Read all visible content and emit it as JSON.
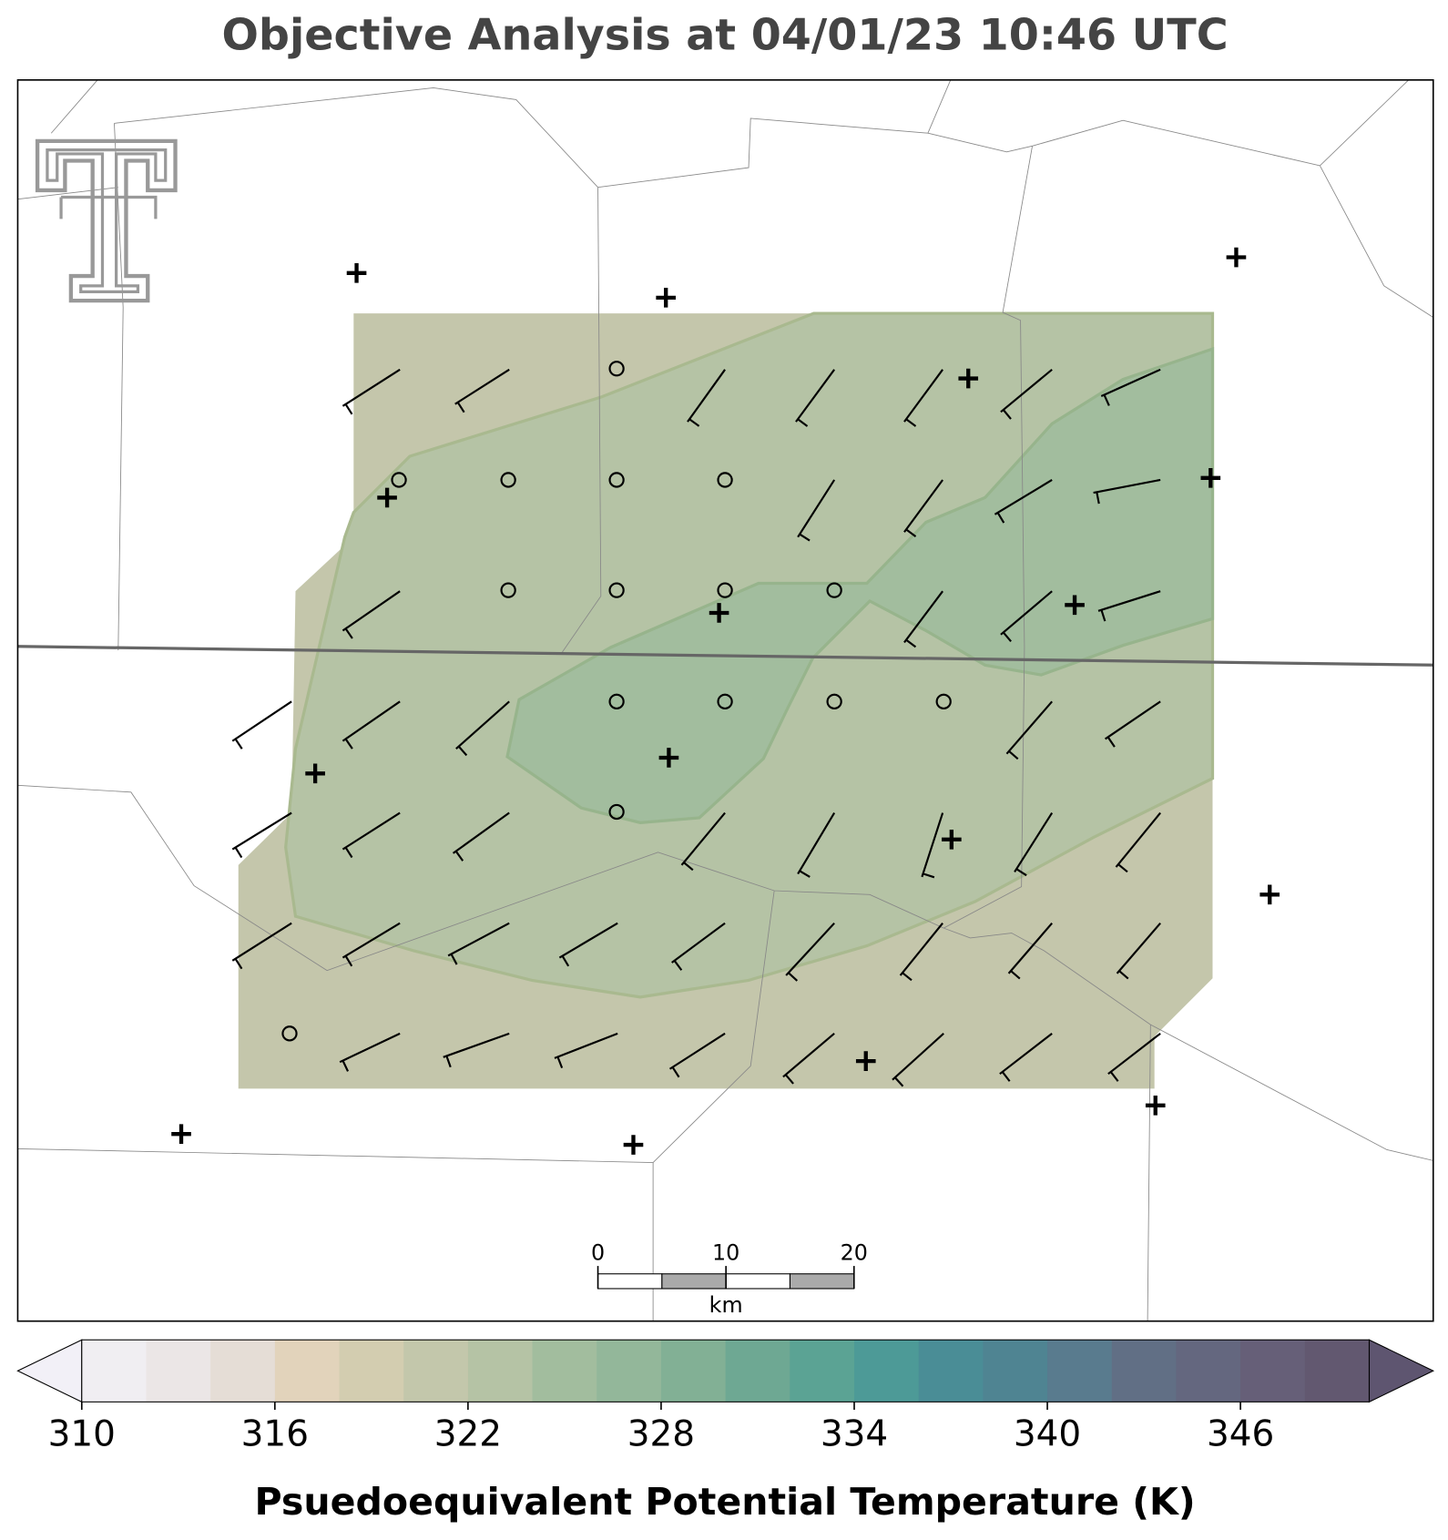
{
  "title": "Objective Analysis at 04/01/23 10:46 UTC",
  "colorbar": {
    "label": "Psuedoequivalent Potential Temperature (K)",
    "clim": [
      310,
      350
    ],
    "ticks": [
      310,
      316,
      322,
      328,
      334,
      340,
      346
    ],
    "colors": [
      "#f0eef2",
      "#ebe6e6",
      "#e5ddd6",
      "#e2d3bb",
      "#d3cdb0",
      "#c3c7ab",
      "#b5c3a5",
      "#a2bd9e",
      "#93b79a",
      "#82b095",
      "#6ea893",
      "#5ba394",
      "#4d9a97",
      "#4a8d96",
      "#4f8492",
      "#597b8e",
      "#616f85",
      "#64677f",
      "#665f78",
      "#625870"
    ],
    "under_color": "#f2f0f7",
    "over_color": "#5e5570"
  },
  "scale_bar": {
    "xlim": [
      0,
      20
    ],
    "ticks": [
      0,
      10,
      20
    ],
    "unit": "km"
  }
}
